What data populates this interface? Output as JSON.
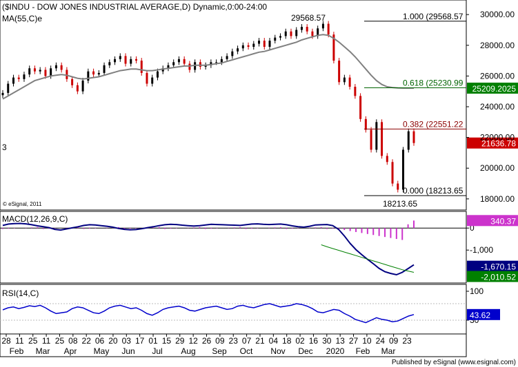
{
  "price_panel": {
    "title": "($INDU - DOW JONES INDUSTRIAL AVERAGE,D) Dynamic,0:00-24:00",
    "ma_label": "MA(55,C)e",
    "left_marker": "3",
    "copyright": "© eSignal, 2011",
    "high_label": "29568.57",
    "low_label": "18213.65",
    "price_badge": "21636.78",
    "ma_badge": "25209.2025",
    "fib_levels": [
      {
        "ratio": 1.0,
        "price": 29568.57,
        "label": "1.000 (29568.57",
        "color": "#000000"
      },
      {
        "ratio": 0.618,
        "price": 25230.99,
        "label": "0.618 (25230.99",
        "color": "#006400"
      },
      {
        "ratio": 0.382,
        "price": 22551.22,
        "label": "0.382 (22551.22",
        "color": "#8b0000"
      },
      {
        "ratio": 0.0,
        "price": 18213.65,
        "label": "0.000 (18213.65",
        "color": "#000000"
      }
    ],
    "ticks": [
      "30000.00",
      "28000.00",
      "26000.00",
      "24000.00",
      "22000.00",
      "20000.00",
      "18000.00"
    ]
  },
  "macd_panel": {
    "title": "MACD(12,26,9,C)",
    "badge_top": "340.37",
    "badge_macd": "-1,670.15",
    "badge_signal": "-2,010.52",
    "ticks": [
      "0",
      "-1,000"
    ]
  },
  "rsi_panel": {
    "title": "RSI(14,C)",
    "badge": "43.62",
    "ticks": [
      "100",
      "30"
    ]
  },
  "footer": "Published by eSignal (www.esignal.com)",
  "colors": {
    "up_candle": "#000000",
    "down_candle": "#cc0000",
    "ma_line": "#808080",
    "macd_line": "#000080",
    "signal_line": "#008000",
    "histogram": "#cc33cc",
    "rsi_line": "#0000cc",
    "price_badge_bg": "#cc0000",
    "ma_badge_bg": "#008000",
    "macd_badge_bg": "#000080",
    "signal_badge_bg": "#008000",
    "hist_badge_bg": "#cc33cc",
    "rsi_badge_bg": "#0000cc"
  },
  "chart_data": {
    "type": "line",
    "title": "($INDU - DOW JONES INDUSTRIAL AVERAGE,D) Dynamic,0:00-24:00",
    "x_day_labels": [
      "28",
      "11",
      "25",
      "11",
      "25",
      "08",
      "22",
      "06",
      "20",
      "03",
      "17",
      "01",
      "15",
      "29",
      "12",
      "26",
      "09",
      "23",
      "07",
      "21",
      "04",
      "18",
      "02",
      "16",
      "30",
      "13",
      "27",
      "10",
      "24",
      "09",
      "23"
    ],
    "x_month_labels": [
      "Feb",
      "Mar",
      "Apr",
      "May",
      "Jun",
      "Jul",
      "Aug",
      "Sep",
      "Oct",
      "Nov",
      "Dec",
      "2020",
      "Feb",
      "Mar"
    ],
    "price_ylim": [
      17500,
      30500
    ],
    "series": [
      {
        "name": "$INDU",
        "values": [
          24900,
          25500,
          25900,
          25800,
          26100,
          26500,
          26300,
          26400,
          26000,
          26500,
          26700,
          26400,
          25800,
          25400,
          25000,
          25700,
          26300,
          26100,
          26200,
          26700,
          26900,
          27100,
          27300,
          26800,
          27100,
          27000,
          26200,
          25500,
          25900,
          26300,
          26500,
          26700,
          26900,
          27100,
          26800,
          26400,
          26900,
          26600,
          26700,
          26900,
          26900,
          27100,
          27300,
          27600,
          27800,
          28000,
          27900,
          28100,
          28300,
          27900,
          28300,
          28500,
          28600,
          28900,
          28600,
          29000,
          29200,
          28900,
          28600,
          29100,
          29400,
          28700,
          27000,
          25600,
          25900,
          25300,
          24700,
          23200,
          22500,
          21200,
          23000,
          20800,
          20400,
          19000,
          18600,
          21200,
          22400,
          21637
        ]
      },
      {
        "name": "MA(55,C)e",
        "values": [
          24500,
          24700,
          24900,
          25100,
          25300,
          25500,
          25700,
          25800,
          25900,
          26000,
          26050,
          26100,
          26050,
          25950,
          25850,
          25800,
          25850,
          25900,
          25950,
          26050,
          26150,
          26250,
          26350,
          26400,
          26450,
          26450,
          26400,
          26350,
          26350,
          26400,
          26450,
          26500,
          26550,
          26600,
          26650,
          26650,
          26700,
          26700,
          26700,
          26750,
          26800,
          26850,
          26950,
          27050,
          27150,
          27250,
          27350,
          27450,
          27550,
          27600,
          27700,
          27800,
          27900,
          28000,
          28100,
          28200,
          28350,
          28450,
          28550,
          28650,
          28700,
          28650,
          28450,
          28200,
          27900,
          27600,
          27250,
          26850,
          26450,
          26050,
          25700,
          25450,
          25300,
          25250,
          25220,
          25210,
          25209,
          25209
        ]
      }
    ],
    "macd_ylim": [
      -2400,
      600
    ],
    "macd": [
      120,
      180,
      200,
      210,
      190,
      150,
      100,
      60,
      20,
      -60,
      -90,
      -40,
      10,
      60,
      120,
      150,
      140,
      110,
      80,
      40,
      -20,
      -60,
      -80,
      -70,
      -30,
      20,
      60,
      110,
      150,
      170,
      160,
      130,
      110,
      90,
      110,
      140,
      170,
      160,
      150,
      140,
      130,
      120,
      150,
      180,
      190,
      170,
      160,
      170,
      180,
      150,
      100,
      60,
      40,
      80,
      140,
      150,
      160,
      110,
      -60,
      -360,
      -700,
      -980,
      -1210,
      -1420,
      -1620,
      -1830,
      -1980,
      -2060,
      -2120,
      -2010,
      -1840,
      -1670.15
    ],
    "macd_signal": [
      -760,
      -850,
      -930,
      -1010,
      -1090,
      -1170,
      -1250,
      -1330,
      -1410,
      -1490,
      -1570,
      -1650,
      -1730,
      -1810,
      -1890,
      -1950,
      -2010.52
    ],
    "rsi_ylim": [
      0,
      110
    ],
    "rsi": [
      55,
      60,
      62,
      58,
      61,
      65,
      63,
      66,
      60,
      52,
      46,
      48,
      50,
      58,
      62,
      60,
      54,
      48,
      46,
      52,
      60,
      64,
      66,
      62,
      58,
      60,
      54,
      46,
      42,
      48,
      56,
      60,
      62,
      64,
      60,
      54,
      52,
      56,
      60,
      62,
      64,
      60,
      56,
      58,
      64,
      66,
      62,
      60,
      64,
      68,
      70,
      66,
      62,
      64,
      66,
      70,
      68,
      64,
      58,
      50,
      48,
      52,
      56,
      54,
      46,
      40,
      32,
      28,
      24,
      30,
      36,
      32,
      30,
      26,
      28,
      34,
      40,
      43.62
    ]
  }
}
